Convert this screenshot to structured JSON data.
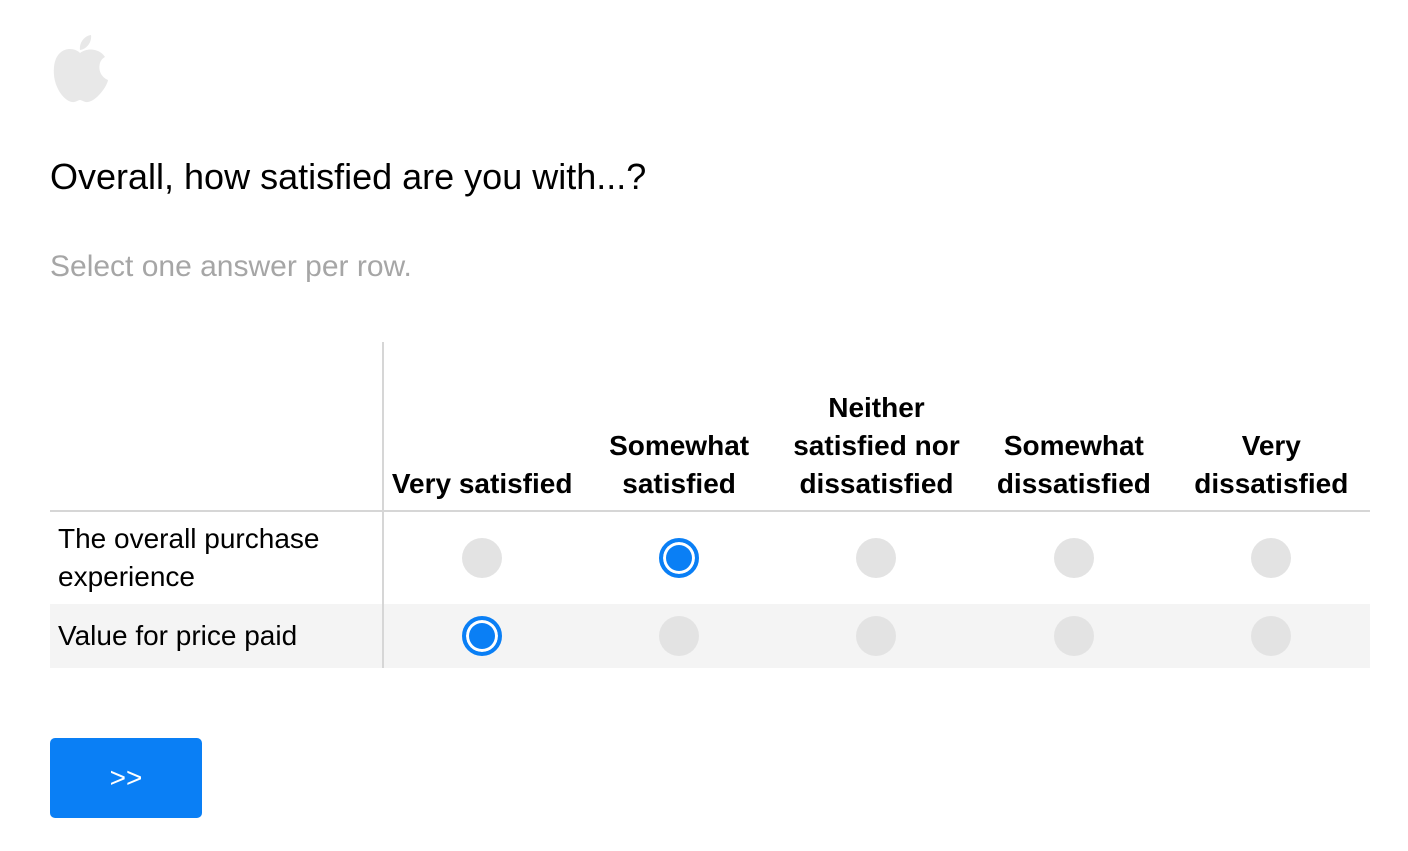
{
  "brand": {
    "logo_icon": "apple-logo-icon",
    "logo_color": "#e8e8e8"
  },
  "question": {
    "title": "Overall, how satisfied are you with...?",
    "instruction": "Select one answer per row."
  },
  "matrix": {
    "columns": [
      "Very satisfied",
      "Somewhat satisfied",
      "Neither satisfied nor dissatisfied",
      "Somewhat dissatisfied",
      "Very dissatisfied"
    ],
    "rows": [
      {
        "label": "The overall purchase experience",
        "selected": "Somewhat satisfied"
      },
      {
        "label": "Value for price paid",
        "selected": "Very satisfied"
      }
    ],
    "selected_color": "#0a7ff5",
    "unselected_color": "#e3e3e3"
  },
  "next_button": {
    "label": ">>",
    "color": "#0a7ff5"
  }
}
